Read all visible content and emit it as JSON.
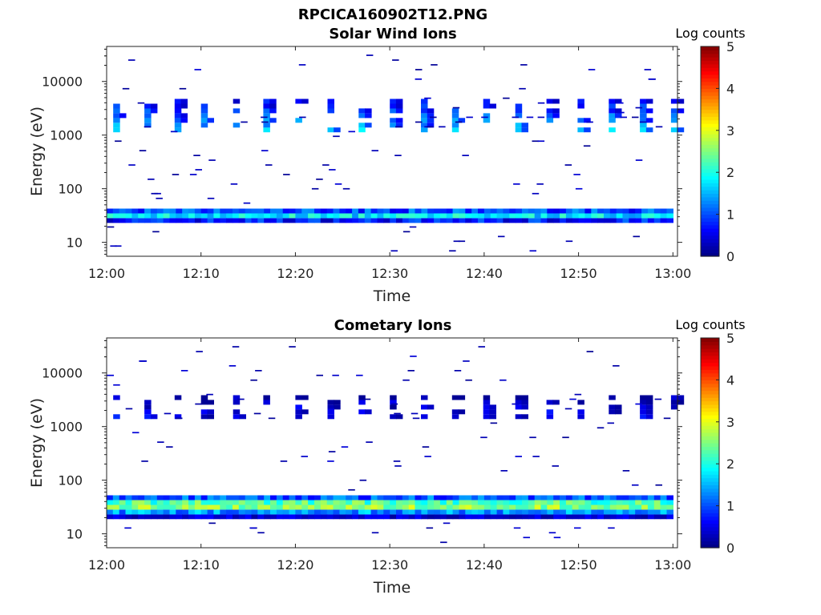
{
  "figure_title": "RPCICA160902T12.PNG",
  "chart_data": [
    {
      "type": "heatmap",
      "title": "Solar Wind Ions",
      "xlabel": "Time",
      "ylabel": "Energy (eV)",
      "x_range": [
        "12:00",
        "13:00"
      ],
      "x_ticks": [
        "12:00",
        "12:10",
        "12:20",
        "12:30",
        "12:40",
        "12:50",
        "13:00"
      ],
      "y_scale": "log",
      "y_range": [
        5.5,
        45000
      ],
      "y_ticks": [
        {
          "value": 10,
          "label": "10"
        },
        {
          "value": 100,
          "label": "100"
        },
        {
          "value": 1000,
          "label": "1000"
        },
        {
          "value": 10000,
          "label": "10000"
        }
      ],
      "colorbar": {
        "title": "Log counts",
        "range": [
          0,
          5
        ],
        "ticks": [
          "0",
          "1",
          "2",
          "3",
          "4",
          "5"
        ],
        "colormap": "jet"
      },
      "structure": {
        "band": {
          "e_low": 24,
          "e_high": 43,
          "peak_log_counts": 1.9,
          "edge_log_counts": 0.4
        },
        "burst_minutes": [
          0.7,
          4,
          7.2,
          10,
          13.4,
          16.6,
          20,
          23.4,
          26.7,
          30,
          33.3,
          36.6,
          39.9,
          43.3,
          46.6,
          49.9,
          53.2,
          56.5,
          59.8
        ],
        "burst_e_low": 1100,
        "burst_e_high": 4800,
        "burst_peak_log_counts": 1.7
      }
    },
    {
      "type": "heatmap",
      "title": "Cometary Ions",
      "xlabel": "Time",
      "ylabel": "Energy (eV)",
      "x_range": [
        "12:00",
        "13:00"
      ],
      "x_ticks": [
        "12:00",
        "12:10",
        "12:20",
        "12:30",
        "12:40",
        "12:50",
        "13:00"
      ],
      "y_scale": "log",
      "y_range": [
        5.5,
        45000
      ],
      "y_ticks": [
        {
          "value": 10,
          "label": "10"
        },
        {
          "value": 100,
          "label": "100"
        },
        {
          "value": 1000,
          "label": "1000"
        },
        {
          "value": 10000,
          "label": "10000"
        }
      ],
      "colorbar": {
        "title": "Log counts",
        "range": [
          0,
          5
        ],
        "ticks": [
          "0",
          "1",
          "2",
          "3",
          "4",
          "5"
        ],
        "colormap": "jet"
      },
      "structure": {
        "band": {
          "e_low": 22,
          "e_high": 52,
          "peak_log_counts": 3.0,
          "edge_log_counts": 0.5
        },
        "burst_minutes": [
          0.7,
          4,
          7.2,
          10,
          13.4,
          16.6,
          20,
          23.4,
          26.7,
          30,
          33.3,
          36.6,
          39.9,
          43.3,
          46.6,
          49.9,
          53.2,
          56.5,
          59.8
        ],
        "burst_e_low": 1300,
        "burst_e_high": 3800,
        "burst_peak_log_counts": 0.6
      }
    }
  ]
}
